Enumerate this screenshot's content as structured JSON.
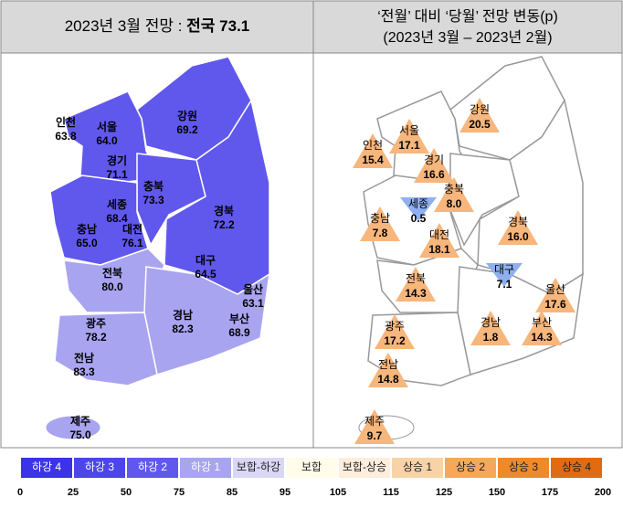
{
  "left": {
    "title": "2023년 3월 전망 : ",
    "title_bold": "전국 73.1",
    "regions": [
      {
        "name": "인천",
        "value": "63.8"
      },
      {
        "name": "서울",
        "value": "64.0"
      },
      {
        "name": "경기",
        "value": "71.1"
      },
      {
        "name": "강원",
        "value": "69.2"
      },
      {
        "name": "충북",
        "value": "73.3"
      },
      {
        "name": "세종",
        "value": "68.4"
      },
      {
        "name": "대전",
        "value": "76.1"
      },
      {
        "name": "충남",
        "value": "65.0"
      },
      {
        "name": "경북",
        "value": "72.2"
      },
      {
        "name": "대구",
        "value": "64.5"
      },
      {
        "name": "울산",
        "value": "63.1"
      },
      {
        "name": "전북",
        "value": "80.0"
      },
      {
        "name": "경남",
        "value": "82.3"
      },
      {
        "name": "부산",
        "value": "68.9"
      },
      {
        "name": "광주",
        "value": "78.2"
      },
      {
        "name": "전남",
        "value": "83.3"
      },
      {
        "name": "제주",
        "value": "75.0"
      }
    ]
  },
  "right": {
    "title": "‘전월’ 대비 ‘당월’ 전망 변동(p)",
    "subtitle": "(2023년 3월 – 2023년 2월)",
    "regions": [
      {
        "name": "서울",
        "value": "17.1",
        "trend": "up"
      },
      {
        "name": "인천",
        "value": "15.4",
        "trend": "up"
      },
      {
        "name": "강원",
        "value": "20.5",
        "trend": "up"
      },
      {
        "name": "경기",
        "value": "16.6",
        "trend": "up"
      },
      {
        "name": "충북",
        "value": "8.0",
        "trend": "up"
      },
      {
        "name": "세종",
        "value": "0.5",
        "trend": "down"
      },
      {
        "name": "충남",
        "value": "7.8",
        "trend": "up"
      },
      {
        "name": "대전",
        "value": "18.1",
        "trend": "up"
      },
      {
        "name": "경북",
        "value": "16.0",
        "trend": "up"
      },
      {
        "name": "대구",
        "value": "7.1",
        "trend": "down"
      },
      {
        "name": "울산",
        "value": "17.6",
        "trend": "up"
      },
      {
        "name": "전북",
        "value": "14.3",
        "trend": "up"
      },
      {
        "name": "경남",
        "value": "1.8",
        "trend": "up"
      },
      {
        "name": "부산",
        "value": "14.3",
        "trend": "up"
      },
      {
        "name": "광주",
        "value": "17.2",
        "trend": "up"
      },
      {
        "name": "전남",
        "value": "14.8",
        "trend": "up"
      },
      {
        "name": "제주",
        "value": "9.7",
        "trend": "up"
      }
    ]
  },
  "legend": {
    "items": [
      {
        "label": "하강 4",
        "color": "#3a33e8"
      },
      {
        "label": "하강 3",
        "color": "#4c45ea"
      },
      {
        "label": "하강 2",
        "color": "#6058ec"
      },
      {
        "label": "하강 1",
        "color": "#a9a4f0"
      },
      {
        "label": "보합-하강",
        "color": "#d9d7f5"
      },
      {
        "label": "보합",
        "color": "#fffdea"
      },
      {
        "label": "보합-상승",
        "color": "#fdeedd"
      },
      {
        "label": "상승 1",
        "color": "#f9d3a8"
      },
      {
        "label": "상승 2",
        "color": "#f5a85c"
      },
      {
        "label": "상승 3",
        "color": "#ee8a2a"
      },
      {
        "label": "상승 4",
        "color": "#e06b10"
      }
    ],
    "scale": [
      "0",
      "25",
      "50",
      "75",
      "85",
      "95",
      "105",
      "115",
      "125",
      "150",
      "175",
      "200"
    ]
  }
}
